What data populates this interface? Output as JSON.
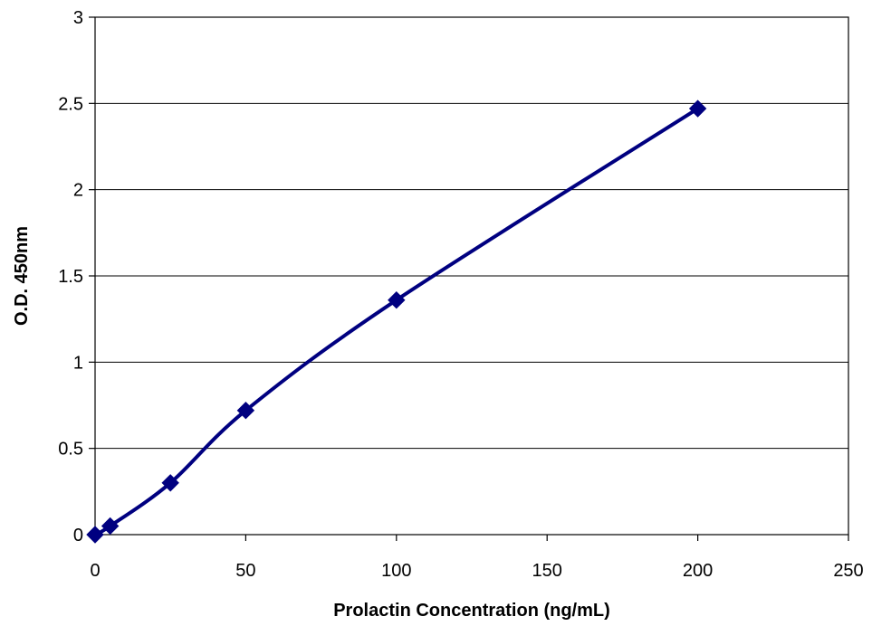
{
  "chart_data": {
    "type": "line",
    "title": "",
    "xlabel": "Prolactin Concentration (ng/mL)",
    "ylabel": "O.D. 450nm",
    "xlim": [
      0,
      250
    ],
    "ylim": [
      0,
      3
    ],
    "x_ticks": [
      "0",
      "50",
      "100",
      "150",
      "200",
      "250"
    ],
    "y_ticks": [
      "0",
      "0.5",
      "1",
      "1.5",
      "2",
      "2.5",
      "3"
    ],
    "grid": "horizontal",
    "legend": "none",
    "marker": "diamond",
    "line_style": "smooth",
    "series": [
      {
        "color": "#000080",
        "x": [
          0,
          5,
          25,
          50,
          100,
          200
        ],
        "y": [
          0.0,
          0.05,
          0.3,
          0.72,
          1.36,
          2.47
        ]
      }
    ]
  }
}
